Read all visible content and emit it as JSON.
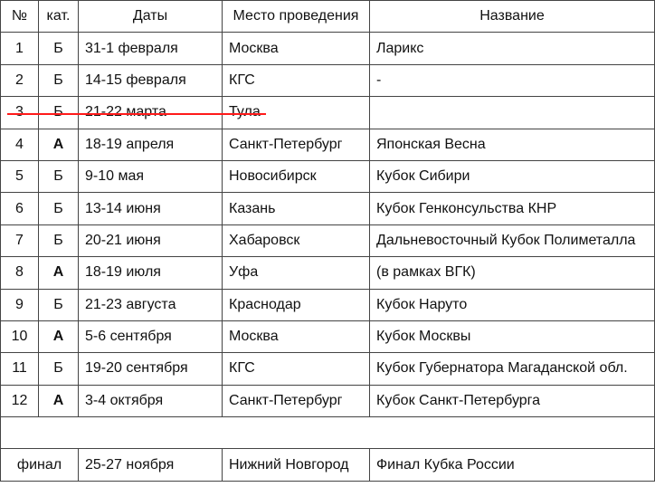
{
  "header": [
    "№",
    "кат.",
    "Даты",
    "Место проведения",
    "Название"
  ],
  "rows": [
    {
      "num": "1",
      "cat": "Б",
      "dates": "31-1 февраля",
      "place": "Москва",
      "name": "Ларикс"
    },
    {
      "num": "2",
      "cat": "Б",
      "dates": "14-15 февраля",
      "place": "КГС",
      "name": "-"
    },
    {
      "num": "3",
      "cat": "Б",
      "dates": "21-22 марта",
      "place": "Тула",
      "name": "",
      "cancelled": true
    },
    {
      "num": "4",
      "cat": "А",
      "dates": "18-19 апреля",
      "place": "Санкт-Петербург",
      "name": "Японская Весна"
    },
    {
      "num": "5",
      "cat": "Б",
      "dates": "9-10 мая",
      "place": "Новосибирск",
      "name": "Кубок Сибири"
    },
    {
      "num": "6",
      "cat": "Б",
      "dates": "13-14 июня",
      "place": "Казань",
      "name": "Кубок Генконсульства КНР"
    },
    {
      "num": "7",
      "cat": "Б",
      "dates": "20-21 июня",
      "place": "Хабаровск",
      "name": "Дальневосточный Кубок Полиметалла"
    },
    {
      "num": "8",
      "cat": "А",
      "dates": "18-19 июля",
      "place": "Уфа",
      "name": "(в рамках ВГК)"
    },
    {
      "num": "9",
      "cat": "Б",
      "dates": "21-23 августа",
      "place": "Краснодар",
      "name": "Кубок Наруто"
    },
    {
      "num": "10",
      "cat": "А",
      "dates": "5-6 сентября",
      "place": "Москва",
      "name": "Кубок Москвы"
    },
    {
      "num": "11",
      "cat": "Б",
      "dates": "19-20 сентября",
      "place": "КГС",
      "name": "Кубок Губернатора Магаданской обл."
    },
    {
      "num": "12",
      "cat": "А",
      "dates": "3-4 октября",
      "place": "Санкт-Петербург",
      "name": "Кубок Санкт-Петербурга"
    }
  ],
  "final": {
    "label": "финал",
    "dates": "25-27 ноября",
    "place": "Нижний Новгород",
    "name": "Финал Кубка России"
  },
  "colors": {
    "strike": "#ff1a1a",
    "border": "#444444"
  }
}
